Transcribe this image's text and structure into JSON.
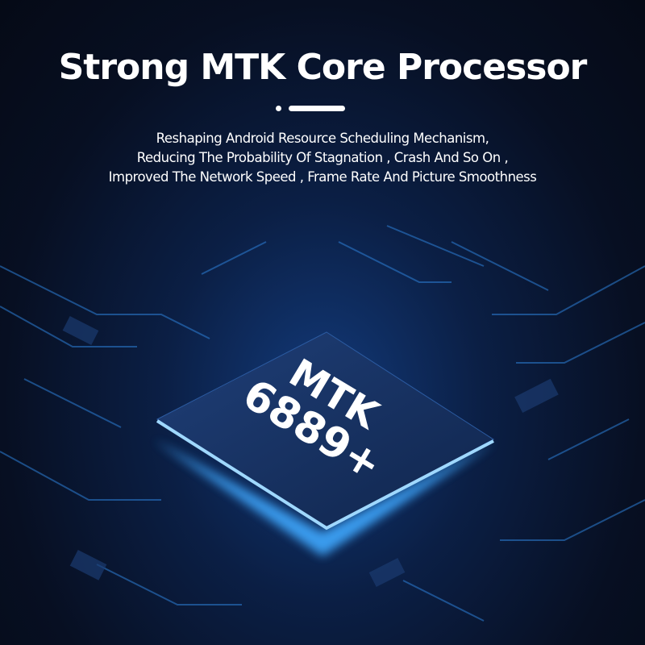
{
  "headline": "Strong MTK Core Processor",
  "subtitle": [
    "Reshaping Android Resource Scheduling Mechanism,",
    "Reducing The Probability Of Stagnation , Crash And So On ,",
    "Improved The Network Speed , Frame Rate And Picture Smoothness"
  ],
  "chip": {
    "brand": "MTK",
    "model": "6889+"
  },
  "colors": {
    "glow": "#3fa9ff",
    "background": "#070f22",
    "chip": "#1a3566"
  }
}
